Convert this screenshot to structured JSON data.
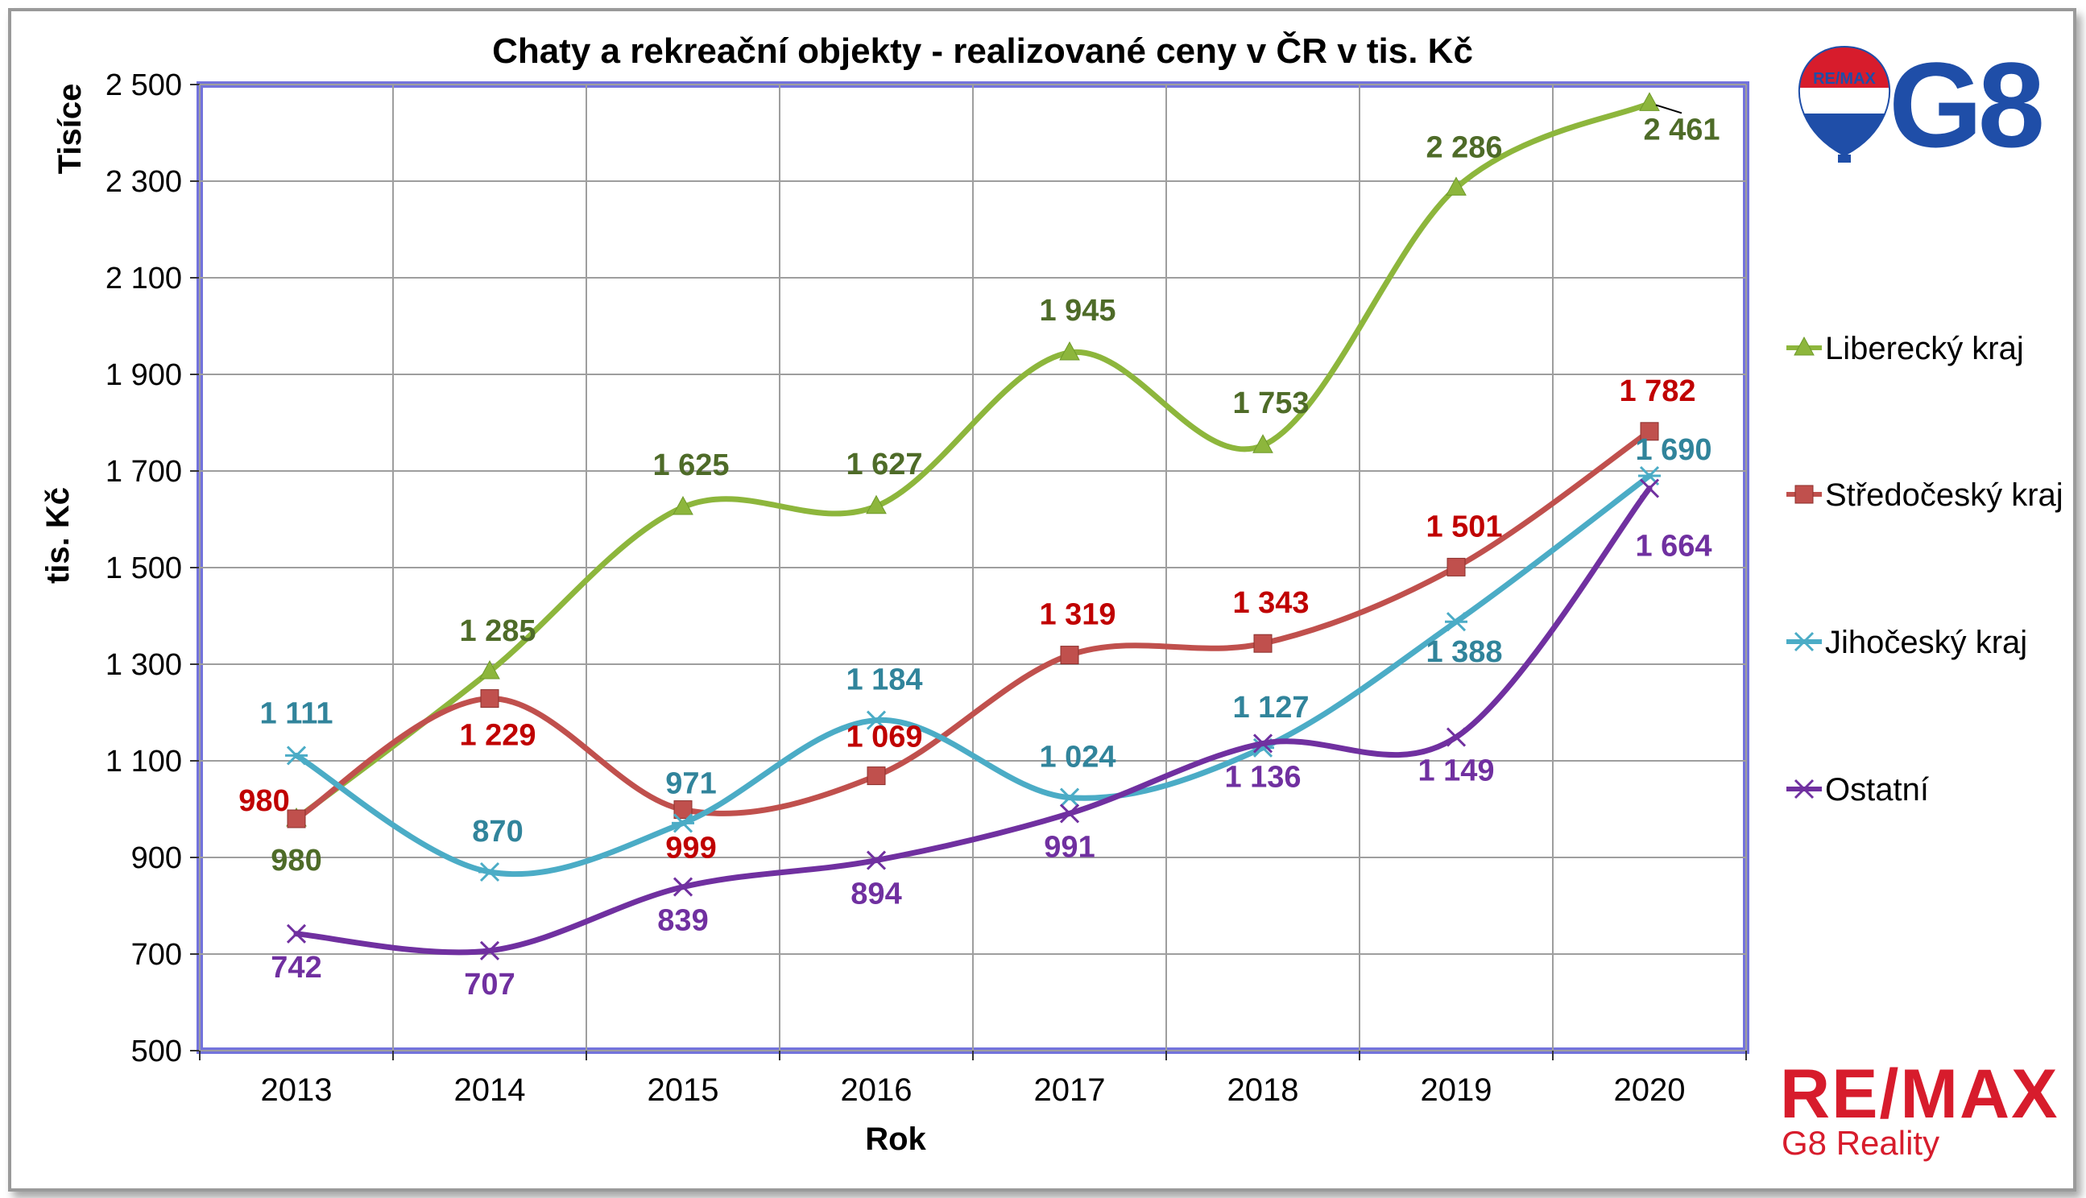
{
  "chart_data": {
    "type": "line",
    "title": "Chaty a rekreační objekty - realizované ceny v ČR v tis. Kč",
    "xlabel": "Rok",
    "ylabel": "tis. Kč",
    "y_unit_label": "Tisíce",
    "categories": [
      "2013",
      "2014",
      "2015",
      "2016",
      "2017",
      "2018",
      "2019",
      "2020"
    ],
    "ylim": [
      500,
      2500
    ],
    "yticks": [
      500,
      700,
      900,
      1100,
      1300,
      1500,
      1700,
      1900,
      2100,
      2300,
      2500
    ],
    "ytick_labels": [
      "500",
      "700",
      "900",
      "1 100",
      "1 300",
      "1 500",
      "1 700",
      "1 900",
      "2 100",
      "2 300",
      "2 500"
    ],
    "grid": true,
    "legend_position": "right",
    "series": [
      {
        "name": "Liberecký kraj",
        "color": "#8db63c",
        "label_color": "#4e6b28",
        "marker": "triangle",
        "values": [
          980,
          1285,
          1625,
          1627,
          1945,
          1753,
          2286,
          2461
        ],
        "labels": [
          "980",
          "1 285",
          "1 625",
          "1 627",
          "1 945",
          "1 753",
          "2 286",
          "2 461"
        ]
      },
      {
        "name": "Středočeský kraj",
        "color": "#c0504d",
        "label_color": "#c00000",
        "marker": "square",
        "values": [
          980,
          1229,
          999,
          1069,
          1319,
          1343,
          1501,
          1782
        ],
        "labels": [
          "980",
          "1 229",
          "999",
          "1 069",
          "1 319",
          "1 343",
          "1 501",
          "1 782"
        ]
      },
      {
        "name": "Jihočeský kraj",
        "color": "#4bacc6",
        "label_color": "#31849b",
        "marker": "star",
        "values": [
          1111,
          870,
          971,
          1184,
          1024,
          1127,
          1388,
          1690
        ],
        "labels": [
          "1 111",
          "870",
          "971",
          "1 184",
          "1 024",
          "1 127",
          "1 388",
          "1 690"
        ]
      },
      {
        "name": "Ostatní",
        "color": "#7030a0",
        "label_color": "#7030a0",
        "marker": "x",
        "values": [
          742,
          707,
          839,
          894,
          991,
          1136,
          1149,
          1664
        ],
        "labels": [
          "742",
          "707",
          "839",
          "894",
          "991",
          "1 136",
          "1 149",
          "1 664"
        ]
      }
    ]
  },
  "branding": {
    "remax_text": "RE/MAX",
    "company_text": "G8 Reality",
    "logo_text": "G8",
    "balloon_text": "RE/MAX",
    "brand_red": "#d71c2c",
    "brand_blue": "#1f4ea8"
  }
}
